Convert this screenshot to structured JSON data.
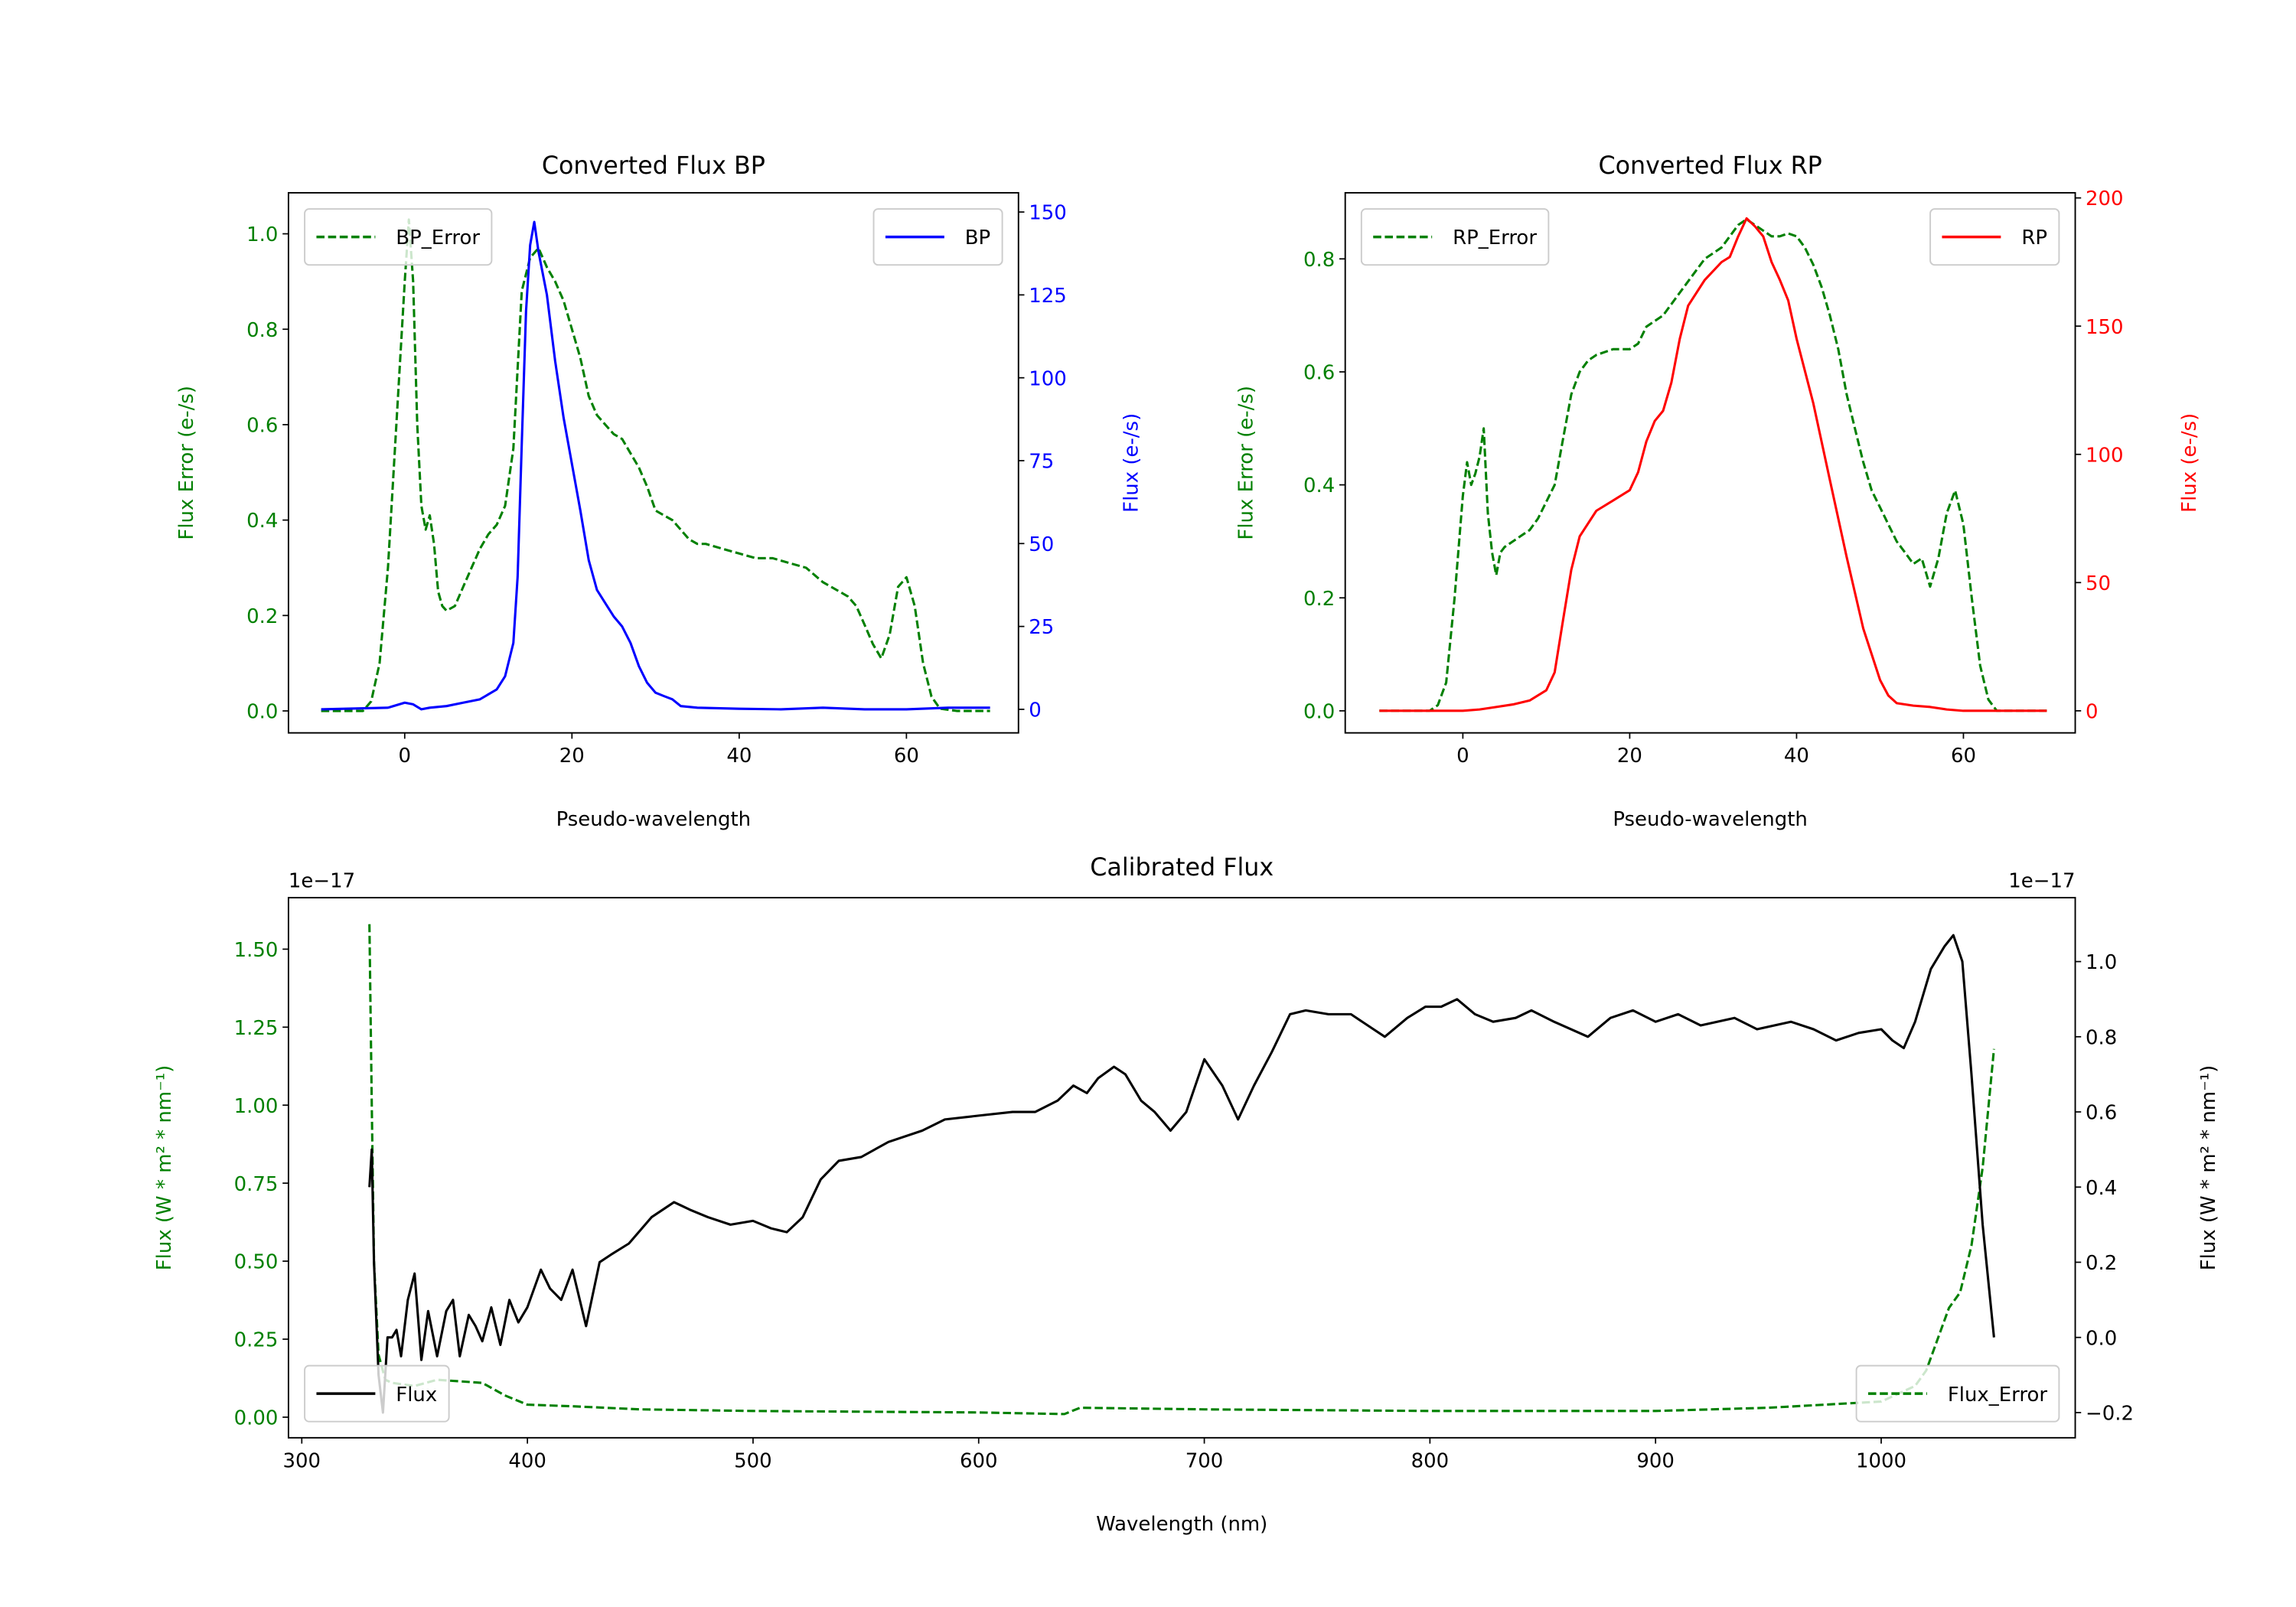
{
  "chart_data": [
    {
      "type": "line",
      "title": "Converted Flux BP",
      "xlabel": "Pseudo-wavelength",
      "ylabel_left": "Flux Error (e-/s)",
      "ylabel_right": "Flux (e-/s)",
      "color_left": "#008000",
      "color_right": "#0000ff",
      "xlim": [
        -13.9,
        73.4
      ],
      "ylim_left": [
        -0.046,
        1.086
      ],
      "ylim_right": [
        -7.1,
        155.8
      ],
      "xticks": [
        {
          "v": 0,
          "label": "0"
        },
        {
          "v": 20,
          "label": "20"
        },
        {
          "v": 40,
          "label": "40"
        },
        {
          "v": 60,
          "label": "60"
        }
      ],
      "yticks_left": [
        {
          "v": 0,
          "label": "0.0"
        },
        {
          "v": 0.2,
          "label": "0.2"
        },
        {
          "v": 0.4,
          "label": "0.4"
        },
        {
          "v": 0.6,
          "label": "0.6"
        },
        {
          "v": 0.8,
          "label": "0.8"
        },
        {
          "v": 1.0,
          "label": "1.0"
        }
      ],
      "yticks_right": [
        {
          "v": 0,
          "label": "0"
        },
        {
          "v": 25,
          "label": "25"
        },
        {
          "v": 50,
          "label": "50"
        },
        {
          "v": 75,
          "label": "75"
        },
        {
          "v": 100,
          "label": "100"
        },
        {
          "v": 125,
          "label": "125"
        },
        {
          "v": 150,
          "label": "150"
        }
      ],
      "series": [
        {
          "name": "BP_Error",
          "axis": "left",
          "color": "#008000",
          "style": "dashed",
          "x": [
            -10,
            -5,
            -4,
            -3,
            -2,
            -1,
            0,
            0.5,
            1,
            1.5,
            2,
            2.5,
            3,
            3.5,
            4,
            4.5,
            5,
            6,
            7,
            8,
            9,
            10,
            11,
            12,
            13,
            14,
            15,
            16,
            17,
            18,
            19,
            20,
            21,
            22,
            23,
            24,
            25,
            26,
            27,
            28,
            29,
            30,
            31,
            32,
            33,
            34,
            35,
            36,
            38,
            40,
            42,
            44,
            46,
            48,
            50,
            52,
            53,
            54,
            55,
            56,
            57,
            58,
            59,
            60,
            61,
            62,
            63,
            64,
            66,
            70
          ],
          "y": [
            0,
            0,
            0.02,
            0.1,
            0.3,
            0.6,
            0.9,
            1.03,
            0.9,
            0.6,
            0.43,
            0.38,
            0.41,
            0.35,
            0.25,
            0.22,
            0.21,
            0.22,
            0.26,
            0.3,
            0.34,
            0.37,
            0.39,
            0.43,
            0.55,
            0.88,
            0.95,
            0.97,
            0.93,
            0.9,
            0.86,
            0.8,
            0.74,
            0.66,
            0.62,
            0.6,
            0.58,
            0.57,
            0.54,
            0.51,
            0.47,
            0.42,
            0.41,
            0.4,
            0.38,
            0.36,
            0.35,
            0.35,
            0.34,
            0.33,
            0.32,
            0.32,
            0.31,
            0.3,
            0.27,
            0.25,
            0.24,
            0.22,
            0.18,
            0.14,
            0.11,
            0.16,
            0.26,
            0.28,
            0.22,
            0.1,
            0.03,
            0.005,
            0,
            0
          ]
        },
        {
          "name": "BP",
          "axis": "right",
          "color": "#0000ff",
          "style": "solid",
          "x": [
            -10,
            -2,
            0,
            1,
            2,
            3,
            5,
            7,
            9,
            11,
            12,
            13,
            13.5,
            14,
            14.5,
            15,
            15.5,
            16,
            17,
            18,
            19,
            20,
            21,
            22,
            23,
            24,
            25,
            26,
            27,
            28,
            29,
            30,
            31,
            32,
            33,
            35,
            40,
            45,
            50,
            55,
            60,
            65,
            70
          ],
          "y": [
            0,
            0.5,
            2,
            1.5,
            0,
            0.5,
            1,
            2,
            3,
            6,
            10,
            20,
            40,
            80,
            120,
            140,
            147,
            138,
            125,
            105,
            88,
            74,
            60,
            45,
            36,
            32,
            28,
            25,
            20,
            13,
            8,
            5,
            4,
            3,
            1,
            0.5,
            0.2,
            0,
            0.5,
            0,
            0,
            0.5,
            0.5
          ]
        }
      ],
      "legends": [
        {
          "placement": "upper-left",
          "entries": [
            "BP_Error"
          ]
        },
        {
          "placement": "upper-right",
          "entries": [
            "BP"
          ]
        }
      ]
    },
    {
      "type": "line",
      "title": "Converted Flux RP",
      "xlabel": "Pseudo-wavelength",
      "ylabel_left": "Flux Error (e-/s)",
      "ylabel_right": "Flux (e-/s)",
      "color_left": "#008000",
      "color_right": "#ff0000",
      "xlim": [
        -14.1,
        73.4
      ],
      "ylim_left": [
        -0.039,
        0.917
      ],
      "ylim_right": [
        -8.6,
        202
      ],
      "xticks": [
        {
          "v": 0,
          "label": "0"
        },
        {
          "v": 20,
          "label": "20"
        },
        {
          "v": 40,
          "label": "40"
        },
        {
          "v": 60,
          "label": "60"
        }
      ],
      "yticks_left": [
        {
          "v": 0,
          "label": "0.0"
        },
        {
          "v": 0.2,
          "label": "0.2"
        },
        {
          "v": 0.4,
          "label": "0.4"
        },
        {
          "v": 0.6,
          "label": "0.6"
        },
        {
          "v": 0.8,
          "label": "0.8"
        }
      ],
      "yticks_right": [
        {
          "v": 0,
          "label": "0"
        },
        {
          "v": 50,
          "label": "50"
        },
        {
          "v": 100,
          "label": "100"
        },
        {
          "v": 150,
          "label": "150"
        },
        {
          "v": 200,
          "label": "200"
        }
      ],
      "series": [
        {
          "name": "RP_Error",
          "axis": "left",
          "color": "#008000",
          "style": "dashed",
          "x": [
            -10,
            -4,
            -3,
            -2,
            -1,
            0,
            0.5,
            1,
            1.5,
            2,
            2.5,
            3,
            3.5,
            4,
            4.5,
            5,
            6,
            7,
            8,
            9,
            10,
            11,
            12,
            13,
            14,
            15,
            16,
            18,
            20,
            21,
            22,
            24,
            26,
            28,
            29,
            31,
            32,
            33,
            34,
            35,
            36,
            37,
            38,
            39,
            40,
            41,
            42,
            43,
            44,
            45,
            46,
            47,
            48,
            49,
            50,
            51,
            52,
            53,
            54,
            55,
            56,
            57,
            58,
            59,
            60,
            61,
            62,
            63,
            64,
            70
          ],
          "y": [
            0,
            0,
            0.01,
            0.05,
            0.2,
            0.38,
            0.44,
            0.4,
            0.42,
            0.45,
            0.5,
            0.35,
            0.28,
            0.24,
            0.28,
            0.29,
            0.3,
            0.31,
            0.32,
            0.34,
            0.37,
            0.4,
            0.48,
            0.56,
            0.6,
            0.62,
            0.63,
            0.64,
            0.64,
            0.65,
            0.68,
            0.7,
            0.74,
            0.78,
            0.8,
            0.82,
            0.84,
            0.86,
            0.87,
            0.86,
            0.85,
            0.84,
            0.84,
            0.845,
            0.84,
            0.82,
            0.79,
            0.75,
            0.7,
            0.64,
            0.56,
            0.5,
            0.44,
            0.39,
            0.36,
            0.33,
            0.3,
            0.28,
            0.26,
            0.27,
            0.22,
            0.27,
            0.35,
            0.39,
            0.33,
            0.2,
            0.08,
            0.02,
            0,
            0
          ]
        },
        {
          "name": "RP",
          "axis": "right",
          "color": "#ff0000",
          "style": "solid",
          "x": [
            -10,
            0,
            2,
            4,
            6,
            8,
            10,
            11,
            12,
            13,
            14,
            16,
            18,
            20,
            21,
            22,
            23,
            24,
            25,
            26,
            27,
            29,
            31,
            32,
            33,
            34,
            35,
            36,
            37,
            38,
            39,
            40,
            42,
            44,
            46,
            48,
            50,
            51,
            52,
            54,
            56,
            58,
            60,
            70
          ],
          "y": [
            0,
            0,
            0.5,
            1.5,
            2.5,
            4,
            8,
            15,
            35,
            55,
            68,
            78,
            82,
            86,
            93,
            105,
            113,
            117,
            128,
            145,
            158,
            168,
            175,
            177,
            185,
            192,
            189,
            185,
            175,
            168,
            160,
            145,
            120,
            90,
            60,
            32,
            12,
            6,
            3,
            2,
            1.5,
            0.5,
            0,
            0
          ]
        }
      ],
      "legends": [
        {
          "placement": "upper-left",
          "entries": [
            "RP_Error"
          ]
        },
        {
          "placement": "upper-right",
          "entries": [
            "RP"
          ]
        }
      ]
    },
    {
      "type": "line",
      "title": "Calibrated Flux",
      "xlabel": "Wavelength (nm)",
      "ylabel_left": "Flux (W * m² * nm⁻¹)",
      "ylabel_right": "Flux (W * m² * nm⁻¹)",
      "color_left": "#008000",
      "color_right": "#000000",
      "offset_left": "1e−17",
      "offset_right": "1e−17",
      "xlim": [
        294.1,
        1086
      ],
      "ylim_left": [
        -0.066,
        1.665
      ],
      "ylim_right": [
        -0.267,
        1.17
      ],
      "xticks": [
        {
          "v": 300,
          "label": "300"
        },
        {
          "v": 400,
          "label": "400"
        },
        {
          "v": 500,
          "label": "500"
        },
        {
          "v": 600,
          "label": "600"
        },
        {
          "v": 700,
          "label": "700"
        },
        {
          "v": 800,
          "label": "800"
        },
        {
          "v": 900,
          "label": "900"
        },
        {
          "v": 1000,
          "label": "1000"
        }
      ],
      "yticks_left": [
        {
          "v": 0,
          "label": "0.00"
        },
        {
          "v": 0.25,
          "label": "0.25"
        },
        {
          "v": 0.5,
          "label": "0.50"
        },
        {
          "v": 0.75,
          "label": "0.75"
        },
        {
          "v": 1.0,
          "label": "1.00"
        },
        {
          "v": 1.25,
          "label": "1.25"
        },
        {
          "v": 1.5,
          "label": "1.50"
        }
      ],
      "yticks_right": [
        {
          "v": -0.2,
          "label": "−0.2"
        },
        {
          "v": 0,
          "label": "0.0"
        },
        {
          "v": 0.2,
          "label": "0.2"
        },
        {
          "v": 0.4,
          "label": "0.4"
        },
        {
          "v": 0.6,
          "label": "0.6"
        },
        {
          "v": 0.8,
          "label": "0.8"
        },
        {
          "v": 1.0,
          "label": "1.0"
        }
      ],
      "series": [
        {
          "name": "Flux_Error",
          "axis": "left",
          "color": "#008000",
          "style": "dashed",
          "x": [
            330,
            331,
            332,
            334,
            337,
            340,
            350,
            360,
            380,
            390,
            400,
            420,
            450,
            500,
            600,
            638,
            645,
            700,
            800,
            900,
            950,
            1000,
            1015,
            1020,
            1025,
            1030,
            1035,
            1040,
            1045,
            1050
          ],
          "y": [
            1.58,
            1.0,
            0.5,
            0.2,
            0.12,
            0.11,
            0.1,
            0.12,
            0.11,
            0.07,
            0.04,
            0.035,
            0.025,
            0.02,
            0.015,
            0.01,
            0.03,
            0.025,
            0.02,
            0.02,
            0.03,
            0.05,
            0.1,
            0.15,
            0.25,
            0.35,
            0.4,
            0.55,
            0.8,
            1.18
          ]
        },
        {
          "name": "Flux",
          "axis": "right",
          "color": "#000000",
          "style": "solid",
          "x": [
            330,
            331,
            332,
            334,
            336,
            338,
            340,
            342,
            344,
            347,
            350,
            353,
            356,
            360,
            364,
            367,
            370,
            374,
            377,
            380,
            384,
            388,
            392,
            396,
            400,
            406,
            410,
            415,
            420,
            426,
            432,
            437,
            445,
            455,
            465,
            472,
            480,
            490,
            500,
            508,
            515,
            522,
            530,
            538,
            548,
            560,
            575,
            585,
            600,
            615,
            625,
            635,
            642,
            648,
            653,
            660,
            665,
            672,
            678,
            685,
            692,
            700,
            708,
            715,
            722,
            730,
            738,
            745,
            755,
            765,
            775,
            780,
            790,
            798,
            805,
            812,
            820,
            828,
            838,
            845,
            855,
            870,
            880,
            890,
            900,
            910,
            920,
            935,
            945,
            960,
            970,
            980,
            990,
            1000,
            1005,
            1010,
            1015,
            1022,
            1028,
            1032,
            1036,
            1040,
            1045,
            1050
          ],
          "y": [
            0.4,
            0.5,
            0.2,
            -0.1,
            -0.2,
            0.0,
            0.0,
            0.02,
            -0.05,
            0.1,
            0.17,
            -0.06,
            0.07,
            -0.05,
            0.07,
            0.1,
            -0.05,
            0.06,
            0.03,
            -0.01,
            0.08,
            -0.02,
            0.1,
            0.04,
            0.08,
            0.18,
            0.13,
            0.1,
            0.18,
            0.03,
            0.2,
            0.22,
            0.25,
            0.32,
            0.36,
            0.34,
            0.32,
            0.3,
            0.31,
            0.29,
            0.28,
            0.32,
            0.42,
            0.47,
            0.48,
            0.52,
            0.55,
            0.58,
            0.59,
            0.6,
            0.6,
            0.63,
            0.67,
            0.65,
            0.69,
            0.72,
            0.7,
            0.63,
            0.6,
            0.55,
            0.6,
            0.74,
            0.67,
            0.58,
            0.67,
            0.76,
            0.86,
            0.87,
            0.86,
            0.86,
            0.82,
            0.8,
            0.85,
            0.88,
            0.88,
            0.9,
            0.86,
            0.84,
            0.85,
            0.87,
            0.84,
            0.8,
            0.85,
            0.87,
            0.84,
            0.86,
            0.83,
            0.85,
            0.82,
            0.84,
            0.82,
            0.79,
            0.81,
            0.82,
            0.79,
            0.77,
            0.84,
            0.98,
            1.04,
            1.07,
            1.0,
            0.7,
            0.3,
            0.0
          ]
        }
      ],
      "legends": [
        {
          "placement": "lower-left",
          "entries": [
            "Flux"
          ]
        },
        {
          "placement": "lower-right",
          "entries": [
            "Flux_Error"
          ]
        }
      ]
    }
  ]
}
